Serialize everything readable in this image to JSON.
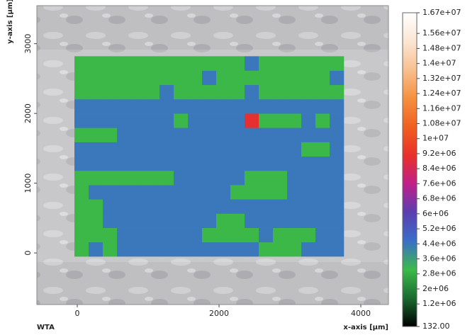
{
  "chart_data": {
    "type": "heatmap",
    "x_label": "x-axis [µm]",
    "y_label": "y-axis [µm]",
    "corner_label": "WTA",
    "xlim": [
      -570,
      4390
    ],
    "ylim": [
      -740,
      3545
    ],
    "xticks": [
      0,
      2000,
      4000
    ],
    "yticks": [
      0,
      1000,
      2000,
      3000
    ],
    "x_edges": [
      -40,
      160,
      360,
      560,
      760,
      960,
      1160,
      1360,
      1560,
      1760,
      1960,
      2160,
      2360,
      2560,
      2760,
      2960,
      3160,
      3360,
      3560,
      3760
    ],
    "y_edges": [
      -50,
      155,
      360,
      565,
      770,
      975,
      1180,
      1385,
      1590,
      1795,
      2000,
      2205,
      2410,
      2615,
      2820
    ],
    "z": [
      [
        3000000,
        4400000,
        3000000,
        4400000,
        4400000,
        4400000,
        4400000,
        4400000,
        4400000,
        4400000,
        4400000,
        4400000,
        4400000,
        3000000,
        3000000,
        3000000,
        4400000,
        4400000,
        4400000
      ],
      [
        3000000,
        3000000,
        3000000,
        4400000,
        4400000,
        4400000,
        4400000,
        4400000,
        4400000,
        3000000,
        3000000,
        3000000,
        3000000,
        4400000,
        3000000,
        3000000,
        3000000,
        4400000,
        4400000
      ],
      [
        3000000,
        3000000,
        4400000,
        4400000,
        4400000,
        4400000,
        4400000,
        4400000,
        4400000,
        4400000,
        3000000,
        3000000,
        4400000,
        4400000,
        4400000,
        4400000,
        4400000,
        4400000,
        4400000
      ],
      [
        3000000,
        3000000,
        4400000,
        4400000,
        4400000,
        4400000,
        4400000,
        4400000,
        4400000,
        4400000,
        4400000,
        4400000,
        4400000,
        4400000,
        4400000,
        4400000,
        4400000,
        4400000,
        4400000
      ],
      [
        3000000,
        4400000,
        4400000,
        4400000,
        4400000,
        4400000,
        4400000,
        4400000,
        4400000,
        4400000,
        4400000,
        3000000,
        3000000,
        3000000,
        3000000,
        4400000,
        4400000,
        4400000,
        4400000
      ],
      [
        3000000,
        3000000,
        3000000,
        3000000,
        3000000,
        3000000,
        3000000,
        4400000,
        4400000,
        4400000,
        4400000,
        4400000,
        3000000,
        3000000,
        3000000,
        4400000,
        4400000,
        4400000,
        4400000
      ],
      [
        4400000,
        4400000,
        4400000,
        4400000,
        4400000,
        4400000,
        4400000,
        4400000,
        4400000,
        4400000,
        4400000,
        4400000,
        4400000,
        4400000,
        4400000,
        4400000,
        4400000,
        4400000,
        4400000
      ],
      [
        4400000,
        4400000,
        4400000,
        4400000,
        4400000,
        4400000,
        4400000,
        4400000,
        4400000,
        4400000,
        4400000,
        4400000,
        4400000,
        4400000,
        4400000,
        4400000,
        3000000,
        3000000,
        4400000
      ],
      [
        3000000,
        3000000,
        3000000,
        4400000,
        4400000,
        4400000,
        4400000,
        4400000,
        4400000,
        4400000,
        4400000,
        4400000,
        4400000,
        4400000,
        4400000,
        4400000,
        4400000,
        4400000,
        4400000
      ],
      [
        4400000,
        4400000,
        4400000,
        4400000,
        4400000,
        4400000,
        4400000,
        3000000,
        4400000,
        4400000,
        4400000,
        4400000,
        9000000,
        3000000,
        3000000,
        3000000,
        4400000,
        3000000,
        4400000
      ],
      [
        4400000,
        4400000,
        4400000,
        4400000,
        4400000,
        4400000,
        4400000,
        4400000,
        4400000,
        4400000,
        4400000,
        4400000,
        4400000,
        4400000,
        4400000,
        4400000,
        4400000,
        4400000,
        4400000
      ],
      [
        3000000,
        3000000,
        3000000,
        3000000,
        3000000,
        3000000,
        4400000,
        3000000,
        3000000,
        3000000,
        3000000,
        3000000,
        4400000,
        3000000,
        3000000,
        3000000,
        3000000,
        3000000,
        3000000
      ],
      [
        3000000,
        3000000,
        3000000,
        3000000,
        3000000,
        3000000,
        3000000,
        3000000,
        3000000,
        4400000,
        3000000,
        3000000,
        3000000,
        3000000,
        3000000,
        3000000,
        3000000,
        3000000,
        4400000
      ],
      [
        3000000,
        3000000,
        3000000,
        3000000,
        3000000,
        3000000,
        3000000,
        3000000,
        3000000,
        3000000,
        3000000,
        3000000,
        4400000,
        3000000,
        3000000,
        3000000,
        3000000,
        3000000,
        3000000
      ]
    ],
    "clim": [
      132,
      16700000
    ],
    "colorscale": [
      "#000000",
      "#1a6b30",
      "#3dba4a",
      "#3a6fc8",
      "#5a3fb0",
      "#c0208a",
      "#e8302a",
      "#f06020",
      "#f59040",
      "#f8c090",
      "#fbe6d4",
      "#ffffff"
    ],
    "cticks": [
      {
        "value": 16700000,
        "label": "1.67e+07"
      },
      {
        "value": 15600000,
        "label": "1.56e+07"
      },
      {
        "value": 14800000,
        "label": "1.48e+07"
      },
      {
        "value": 14000000,
        "label": "1.4e+07"
      },
      {
        "value": 13200000,
        "label": "1.32e+07"
      },
      {
        "value": 12400000,
        "label": "1.24e+07"
      },
      {
        "value": 11600000,
        "label": "1.16e+07"
      },
      {
        "value": 10800000,
        "label": "1.08e+07"
      },
      {
        "value": 10000000,
        "label": "1e+07"
      },
      {
        "value": 9200000,
        "label": "9.2e+06"
      },
      {
        "value": 8400000,
        "label": "8.4e+06"
      },
      {
        "value": 7600000,
        "label": "7.6e+06"
      },
      {
        "value": 6800000,
        "label": "6.8e+06"
      },
      {
        "value": 6000000,
        "label": "6e+06"
      },
      {
        "value": 5200000,
        "label": "5.2e+06"
      },
      {
        "value": 4400000,
        "label": "4.4e+06"
      },
      {
        "value": 3600000,
        "label": "3.6e+06"
      },
      {
        "value": 2800000,
        "label": "2.8e+06"
      },
      {
        "value": 2000000,
        "label": "2e+06"
      },
      {
        "value": 1200000,
        "label": "1.2e+06"
      },
      {
        "value": 132,
        "label": "132.00"
      }
    ]
  }
}
